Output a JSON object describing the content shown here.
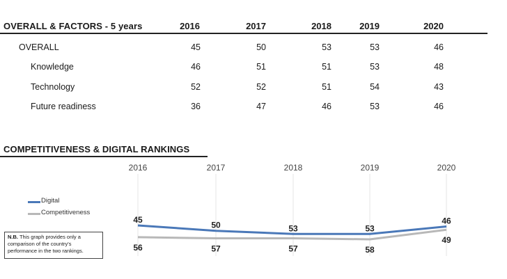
{
  "table": {
    "title": "OVERALL & FACTORS - 5 years",
    "years": [
      "2016",
      "2017",
      "2018",
      "2019",
      "2020"
    ],
    "rows": [
      {
        "label": "OVERALL",
        "values": [
          "45",
          "50",
          "53",
          "53",
          "46"
        ]
      },
      {
        "label": "Knowledge",
        "values": [
          "46",
          "51",
          "51",
          "53",
          "48"
        ]
      },
      {
        "label": "Technology",
        "values": [
          "52",
          "52",
          "51",
          "54",
          "43"
        ]
      },
      {
        "label": "Future readiness",
        "values": [
          "36",
          "47",
          "46",
          "53",
          "46"
        ]
      }
    ]
  },
  "chart_section": {
    "title": "COMPETITIVENESS & DIGITAL RANKINGS",
    "note_bold": "N.B.",
    "note_text": "This graph provides only a comparison of the country's performance in the two rankings."
  },
  "colors": {
    "digital": "#4a78b8",
    "competitiveness": "#b8b8b8"
  },
  "chart_data": {
    "type": "line",
    "categories": [
      "2016",
      "2017",
      "2018",
      "2019",
      "2020"
    ],
    "series": [
      {
        "name": "Digital",
        "values": [
          45,
          50,
          53,
          53,
          46
        ]
      },
      {
        "name": "Competitiveness",
        "values": [
          56,
          57,
          57,
          58,
          49
        ]
      }
    ],
    "title": "COMPETITIVENESS & DIGITAL RANKINGS",
    "legend": "left",
    "grid": true
  }
}
